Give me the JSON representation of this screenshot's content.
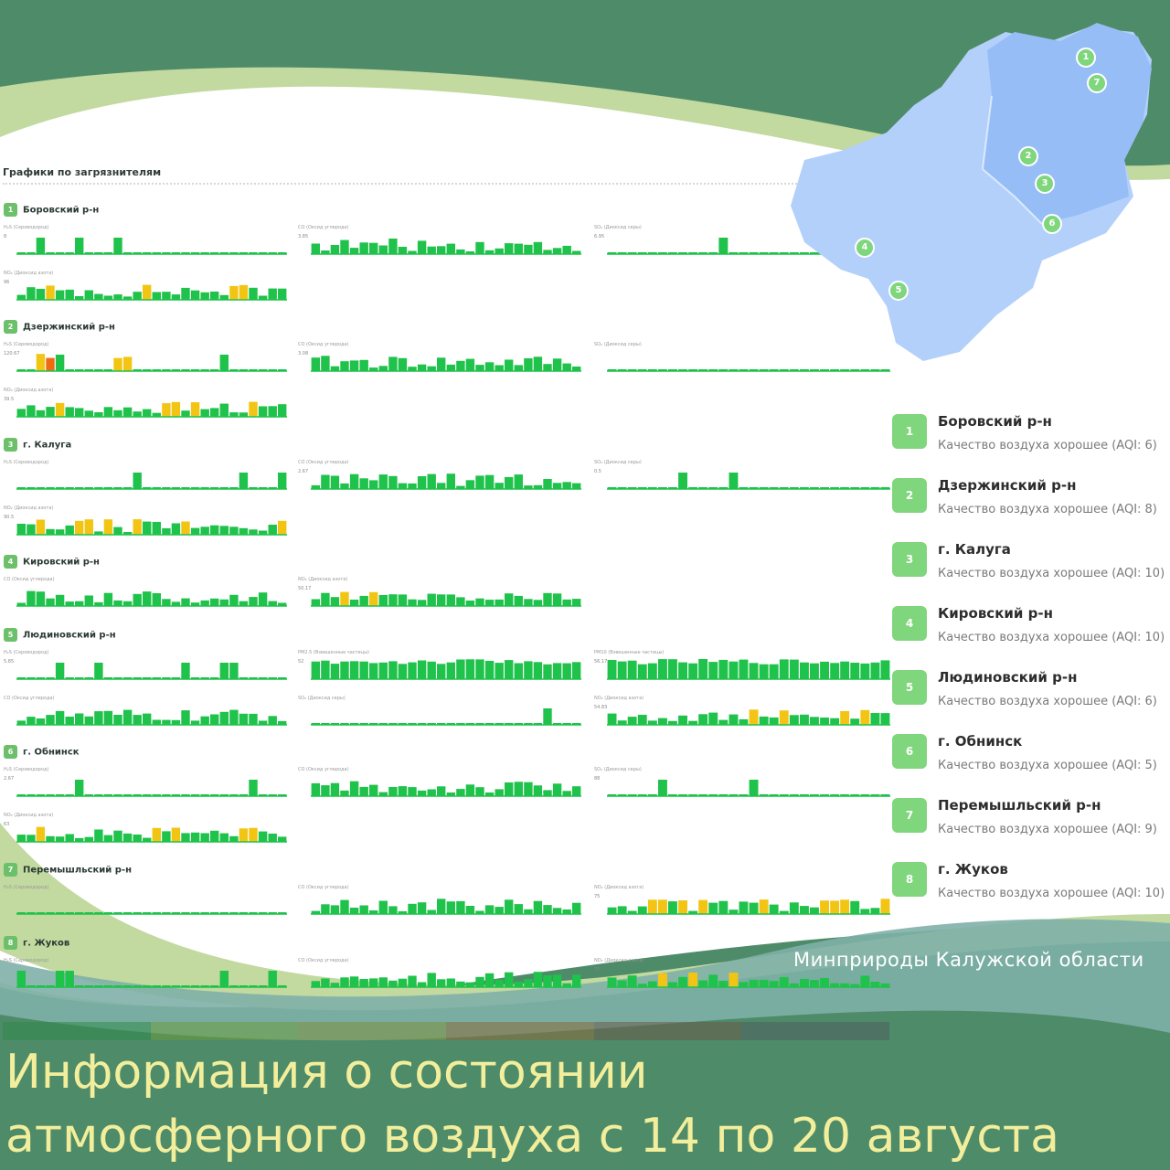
{
  "header": {
    "charts_title": "Графики по загрязнителям"
  },
  "sections": [
    {
      "num": "1",
      "name": "Боровский р-н",
      "charts": [
        {
          "label": "H₂S (Сероводород)",
          "max": "8"
        },
        {
          "label": "CO (Оксид углерода)",
          "max": "3.85"
        },
        {
          "label": "SO₂ (Диоксид серы)",
          "max": "6.95"
        },
        {
          "label": "NO₂ (Диоксид азота)",
          "max": "96"
        }
      ]
    },
    {
      "num": "2",
      "name": "Дзержинский р-н",
      "charts": [
        {
          "label": "H₂S (Сероводород)",
          "max": "120.67"
        },
        {
          "label": "CO (Оксид углерода)",
          "max": "3.08"
        },
        {
          "label": "SO₂ (Диоксид серы)",
          "max": ""
        },
        {
          "label": "NO₂ (Диоксид азота)",
          "max": "39.5"
        }
      ]
    },
    {
      "num": "3",
      "name": "г. Калуга",
      "charts": [
        {
          "label": "H₂S (Сероводород)",
          "max": ""
        },
        {
          "label": "CO (Оксид углерода)",
          "max": "2.67"
        },
        {
          "label": "SO₂ (Диоксид серы)",
          "max": "0.5"
        },
        {
          "label": "NO₂ (Диоксид азота)",
          "max": "90.5"
        }
      ]
    },
    {
      "num": "4",
      "name": "Кировский р-н",
      "charts": [
        {
          "label": "CO (Оксид углерода)",
          "max": ""
        },
        {
          "label": "NO₂ (Диоксид азота)",
          "max": "50.17"
        }
      ]
    },
    {
      "num": "5",
      "name": "Людиновский р-н",
      "charts": [
        {
          "label": "H₂S (Сероводород)",
          "max": "5.85"
        },
        {
          "label": "PM2.5 (Взвешенные частицы)",
          "max": "52"
        },
        {
          "label": "PM10 (Взвешенные частицы)",
          "max": "56.17"
        },
        {
          "label": "CO (Оксид углерода)",
          "max": ""
        },
        {
          "label": "SO₂ (Диоксид серы)",
          "max": ""
        },
        {
          "label": "NO₂ (Диоксид азота)",
          "max": "54.83"
        }
      ]
    },
    {
      "num": "6",
      "name": "г. Обнинск",
      "charts": [
        {
          "label": "H₂S (Сероводород)",
          "max": "2.67"
        },
        {
          "label": "CO (Оксид углерода)",
          "max": ""
        },
        {
          "label": "SO₂ (Диоксид серы)",
          "max": "88"
        },
        {
          "label": "NO₂ (Диоксид азота)",
          "max": "63"
        }
      ]
    },
    {
      "num": "7",
      "name": "Перемышльский р-н",
      "charts": [
        {
          "label": "H₂S (Сероводород)",
          "max": ""
        },
        {
          "label": "CO (Оксид углерода)",
          "max": ""
        },
        {
          "label": "NO₂ (Диоксид азота)",
          "max": "75"
        }
      ]
    },
    {
      "num": "8",
      "name": "г. Жуков",
      "charts": [
        {
          "label": "H₂S (Сероводород)",
          "max": ""
        },
        {
          "label": "CO (Оксид углерода)",
          "max": ""
        },
        {
          "label": "NO₂ (Диоксид азота)",
          "max": "75"
        }
      ]
    }
  ],
  "legend": [
    {
      "num": "1",
      "name": "Боровский р-н",
      "status": "Качество воздуха хорошее (AQI: 6)"
    },
    {
      "num": "2",
      "name": "Дзержинский р-н",
      "status": "Качество воздуха хорошее (AQI: 8)"
    },
    {
      "num": "3",
      "name": "г. Калуга",
      "status": "Качество воздуха хорошее (AQI: 10)"
    },
    {
      "num": "4",
      "name": "Кировский р-н",
      "status": "Качество воздуха хорошее (AQI: 10)"
    },
    {
      "num": "5",
      "name": "Людиновский р-н",
      "status": "Качество воздуха хорошее (AQI: 6)"
    },
    {
      "num": "6",
      "name": "г. Обнинск",
      "status": "Качество воздуха хорошее (AQI: 5)"
    },
    {
      "num": "7",
      "name": "Перемышльский р-н",
      "status": "Качество воздуха хорошее (AQI: 9)"
    },
    {
      "num": "8",
      "name": "г. Жуков",
      "status": "Качество воздуха хорошее (AQI: 10)"
    }
  ],
  "map_pins": [
    "1",
    "2",
    "3",
    "4",
    "5",
    "6",
    "7"
  ],
  "footer": {
    "ministry": "Минприроды Калужской области",
    "headline_line1": "Информация о состоянии",
    "headline_line2": "атмосферного воздуха с 14 по 20 августа"
  },
  "colors": {
    "background": "#4e8b68",
    "good": "#1fc24a",
    "moderate": "#f2c515",
    "high": "#f06a14",
    "map_light": "#b3d0fb",
    "map_dark": "#97bdf6",
    "headline": "#f2ee9c"
  }
}
